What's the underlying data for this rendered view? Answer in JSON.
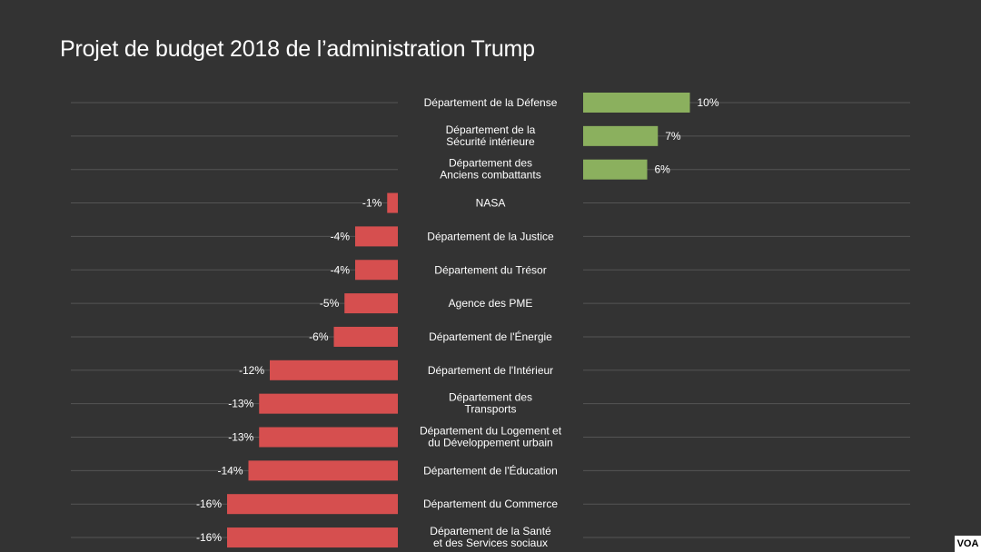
{
  "title": "Projet de budget 2018 de l’administration Trump",
  "logo": "VOA",
  "colors": {
    "positive": "#8bb05e",
    "negative": "#d64f4f",
    "grid": "#555555",
    "background": "#333333",
    "text": "#ffffff"
  },
  "chart_data": {
    "type": "bar",
    "orientation": "horizontal",
    "title": "Projet de budget 2018 de l’administration Trump",
    "xlabel": "",
    "ylabel": "",
    "xlim": [
      -16,
      10
    ],
    "grid": true,
    "categories": [
      [
        "Département de la Défense"
      ],
      [
        "Département de la",
        "Sécurité intérieure"
      ],
      [
        "Département des",
        "Anciens combattants"
      ],
      [
        "NASA"
      ],
      [
        "Département de la Justice"
      ],
      [
        "Département du Trésor"
      ],
      [
        "Agence des PME"
      ],
      [
        "Département de l'Énergie"
      ],
      [
        "Département de l'Intérieur"
      ],
      [
        "Département des",
        "Transports"
      ],
      [
        "Département du Logement et",
        "du Développement urbain"
      ],
      [
        "Département de l'Éducation"
      ],
      [
        "Département du Commerce"
      ],
      [
        "Département de la Santé",
        "et des Services sociaux"
      ]
    ],
    "values": [
      10,
      7,
      6,
      -1,
      -4,
      -4,
      -5,
      -6,
      -12,
      -13,
      -13,
      -14,
      -16,
      -16
    ],
    "value_labels": [
      "10%",
      "7%",
      "6%",
      "-1%",
      "-4%",
      "-4%",
      "-5%",
      "-6%",
      "-12%",
      "-13%",
      "-13%",
      "-14%",
      "-16%",
      "-16%"
    ]
  }
}
